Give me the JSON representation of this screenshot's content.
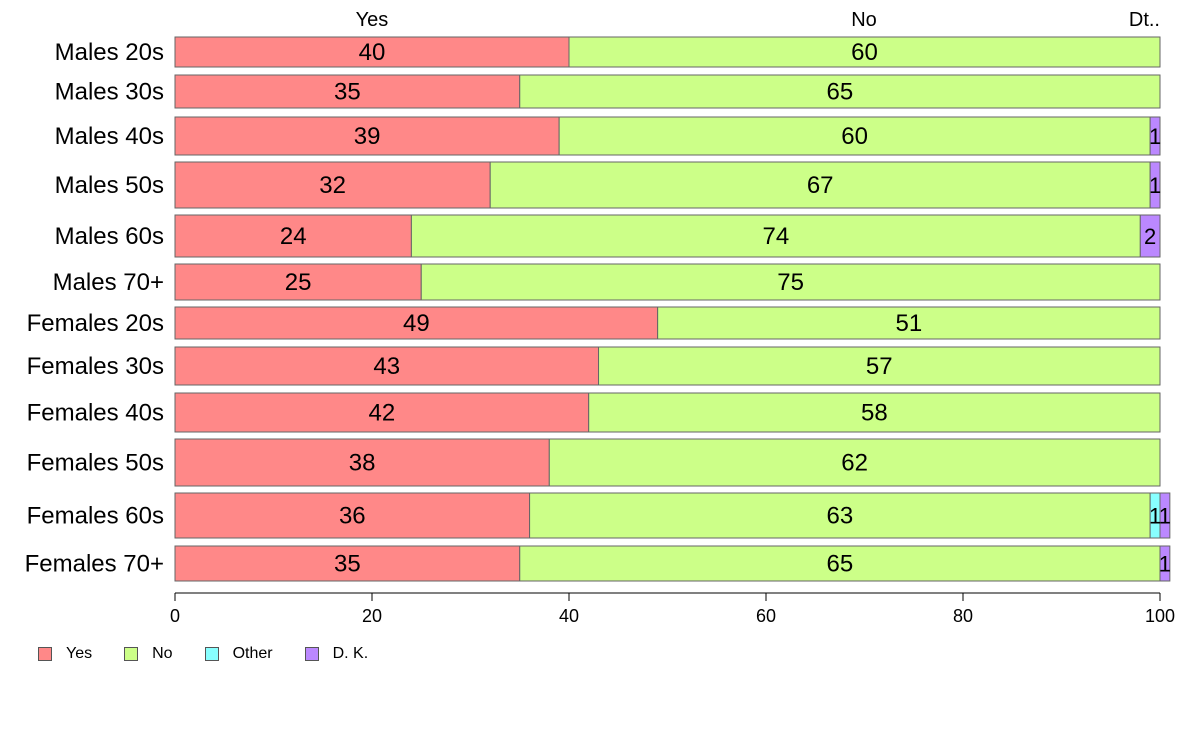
{
  "chart_data": {
    "type": "bar",
    "orientation": "horizontal",
    "stacked": true,
    "categories": [
      "Males 20s",
      "Males 30s",
      "Males 40s",
      "Males 50s",
      "Males 60s",
      "Males 70+",
      "Females 20s",
      "Females 30s",
      "Females 40s",
      "Females 50s",
      "Females 60s",
      "Females 70+"
    ],
    "series": [
      {
        "name": "Yes",
        "color": "#ff8888",
        "values": [
          40,
          35,
          39,
          32,
          24,
          25,
          49,
          43,
          42,
          38,
          36,
          35
        ]
      },
      {
        "name": "No",
        "color": "#ccff88",
        "values": [
          60,
          65,
          60,
          67,
          74,
          75,
          51,
          57,
          58,
          62,
          63,
          65
        ]
      },
      {
        "name": "Other",
        "color": "#88ffff",
        "values": [
          0,
          0,
          0,
          0,
          0,
          0,
          0,
          0,
          0,
          0,
          1,
          0
        ]
      },
      {
        "name": "D. K.",
        "color": "#bb88ff",
        "values": [
          0,
          0,
          1,
          1,
          2,
          0,
          0,
          0,
          0,
          0,
          1,
          1
        ]
      }
    ],
    "top_labels": [
      "Yes",
      "No",
      "Dt.."
    ],
    "xlim": [
      0,
      100
    ],
    "xticks": [
      "0",
      "20",
      "40",
      "60",
      "80",
      "100"
    ],
    "title": "",
    "xlabel": "",
    "ylabel": "",
    "grid": false,
    "legend_position": "bottom-left"
  }
}
